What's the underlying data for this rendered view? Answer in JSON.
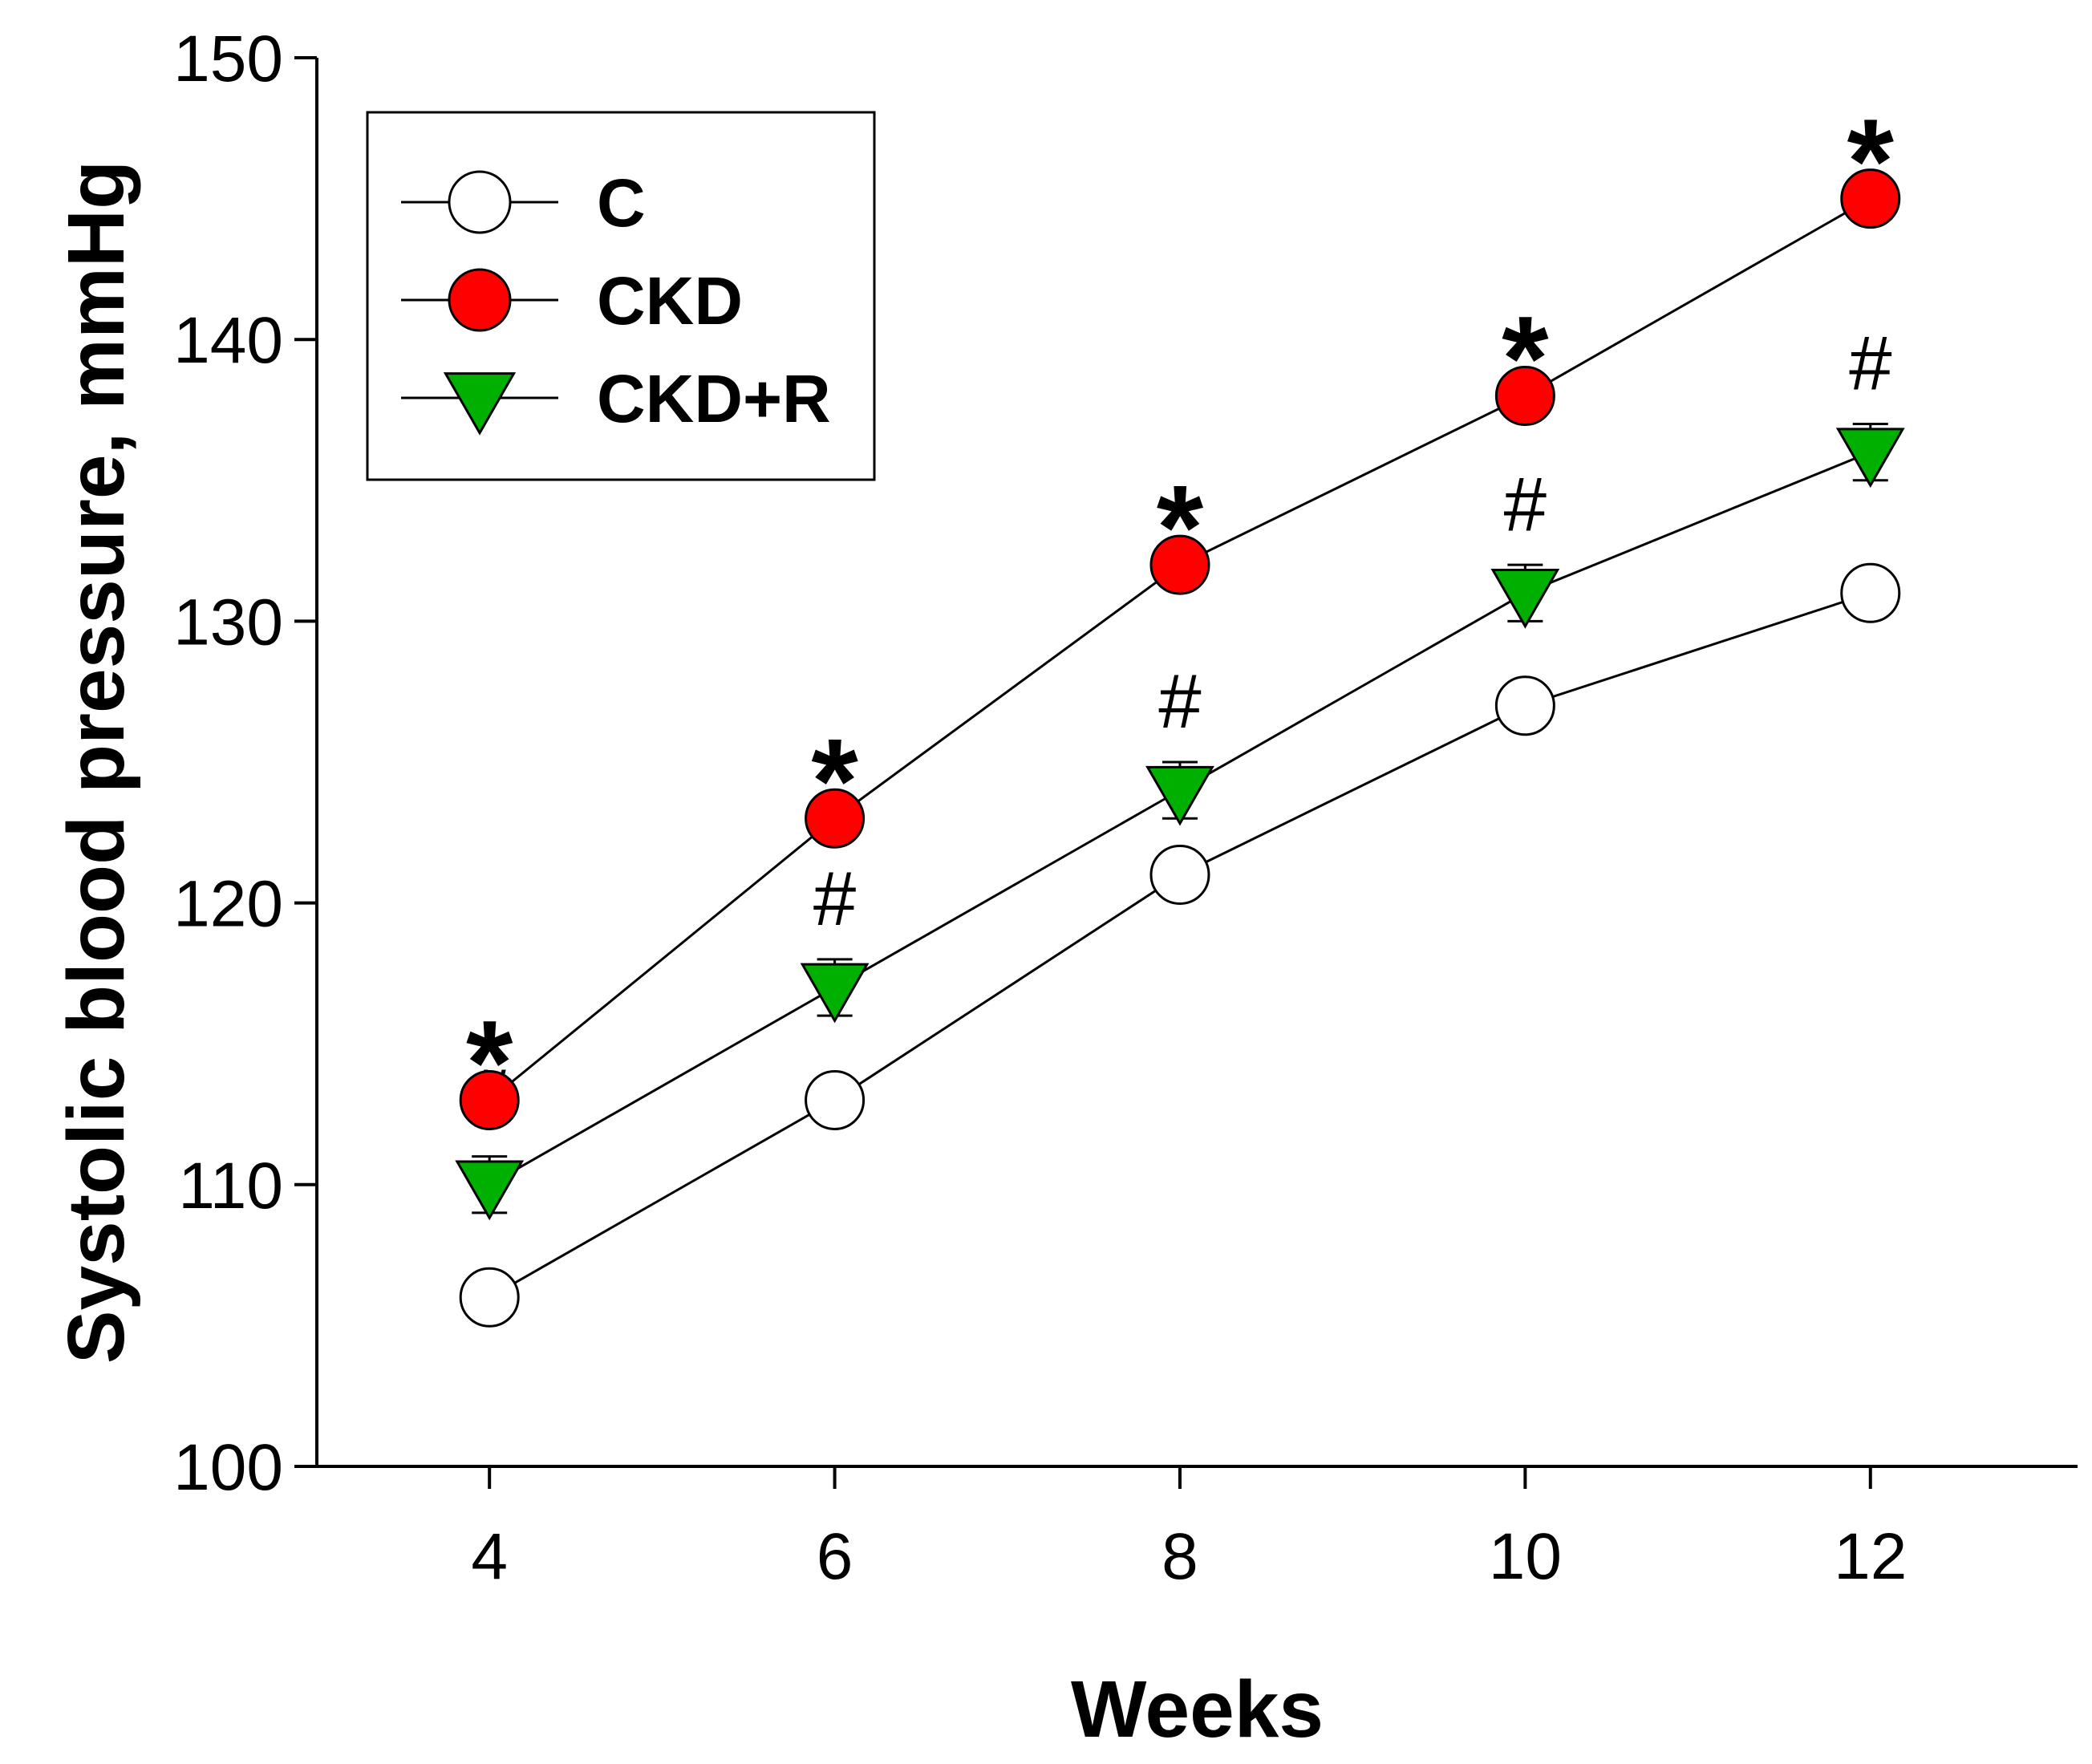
{
  "chart_data": {
    "type": "line",
    "xlabel": "Weeks",
    "ylabel": "Systolic blood pressure, mmHg",
    "xlim": [
      3,
      13.2
    ],
    "ylim": [
      100,
      150
    ],
    "x_ticks": [
      4,
      6,
      8,
      10,
      12
    ],
    "x_tick_labels": [
      "4",
      "6",
      "8",
      "10",
      "12"
    ],
    "y_ticks": [
      100,
      110,
      120,
      130,
      140,
      150
    ],
    "y_tick_labels": [
      "100",
      "110",
      "120",
      "130",
      "140",
      "150"
    ],
    "grid": false,
    "legend_position": "top-left",
    "series": [
      {
        "name": "C",
        "marker": "circle",
        "fill": "#ffffff",
        "x": [
          4,
          6,
          8,
          10,
          12
        ],
        "y": [
          106,
          113,
          121,
          127,
          131
        ]
      },
      {
        "name": "CKD",
        "marker": "circle",
        "fill": "#ff0000",
        "x": [
          4,
          6,
          8,
          10,
          12
        ],
        "y": [
          113,
          123,
          132,
          138,
          145
        ],
        "annotation": "*"
      },
      {
        "name": "CKD+R",
        "marker": "triangle-down",
        "fill": "#00b000",
        "x": [
          4,
          6,
          8,
          10,
          12
        ],
        "y": [
          110,
          117,
          124,
          131,
          136
        ],
        "error": [
          1,
          1,
          1,
          1,
          1
        ],
        "annotation": "#"
      }
    ]
  }
}
